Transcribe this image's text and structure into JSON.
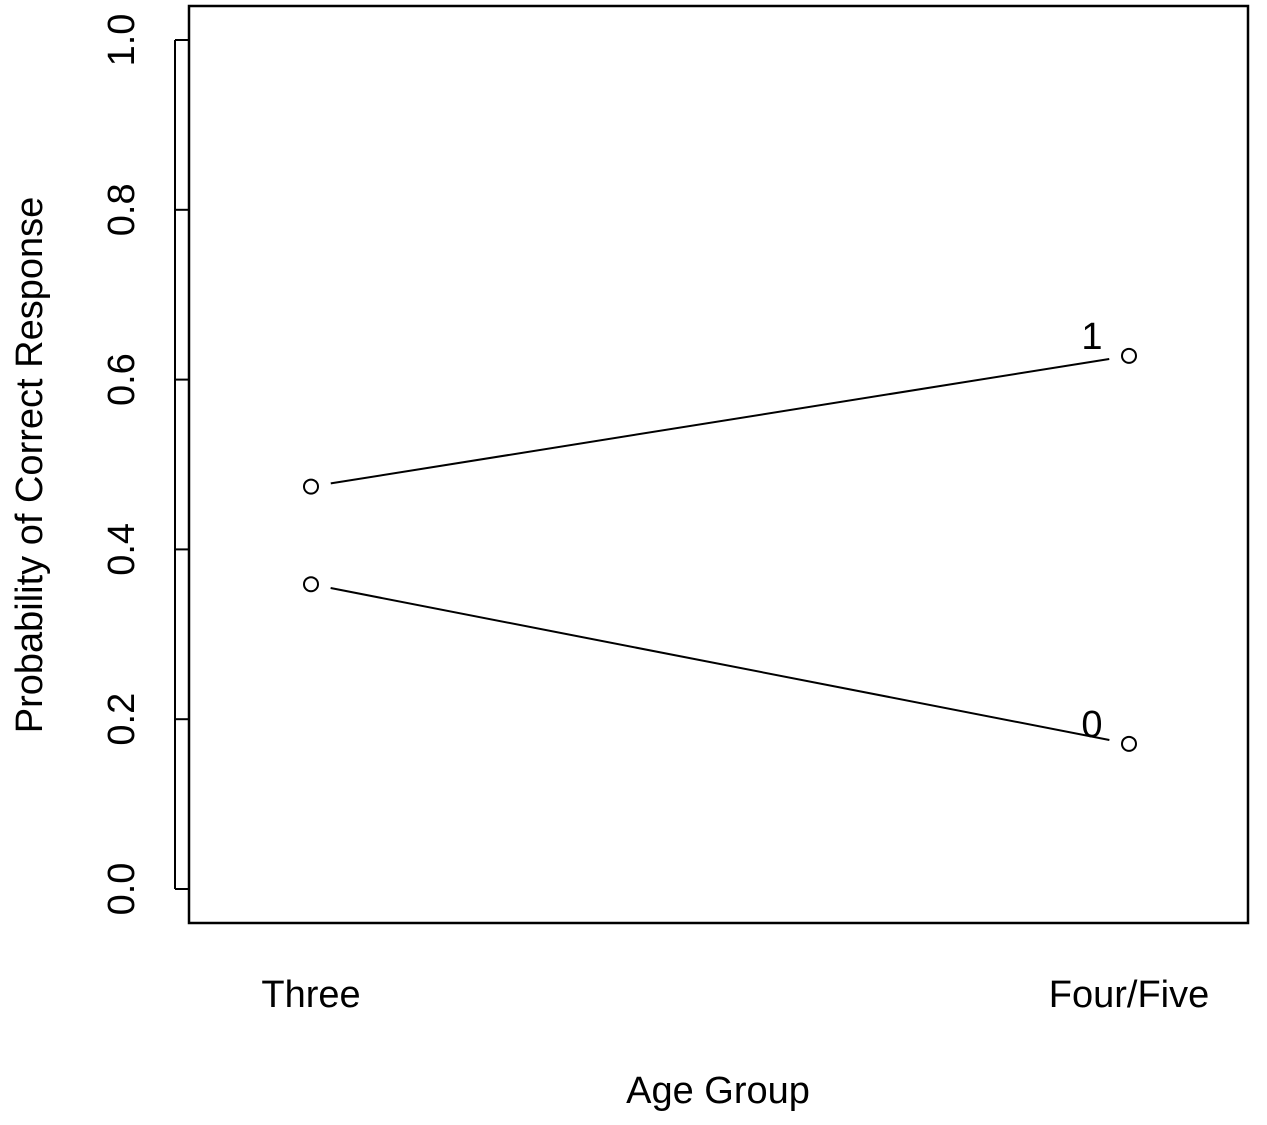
{
  "chart_data": {
    "type": "line",
    "title": "",
    "xlabel": "Age Group",
    "ylabel": "Probability of Correct Response",
    "categories": [
      "Three",
      "Four/Five"
    ],
    "ylim": [
      0.0,
      1.0
    ],
    "yticks": [
      "0.0",
      "0.2",
      "0.4",
      "0.6",
      "0.8",
      "1.0"
    ],
    "grid": false,
    "series": [
      {
        "name": "1",
        "values": [
          0.474,
          0.628
        ]
      },
      {
        "name": "0",
        "values": [
          0.359,
          0.171
        ]
      }
    ]
  }
}
